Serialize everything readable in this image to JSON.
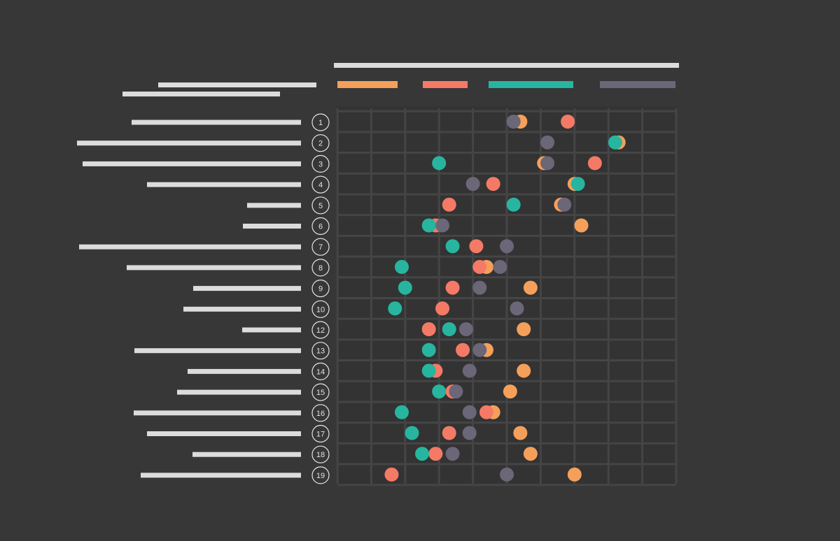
{
  "chart_data": {
    "type": "dot-plot",
    "title_placeholder": true,
    "series": [
      {
        "key": "orange",
        "color": "#f5a05a"
      },
      {
        "key": "coral",
        "color": "#f47a66"
      },
      {
        "key": "teal",
        "color": "#27b5a0"
      },
      {
        "key": "slate",
        "color": "#6b6678"
      }
    ],
    "xlim": [
      0,
      10
    ],
    "x_gridlines": 10,
    "rows": [
      {
        "rank": "1",
        "values": {
          "slate": 5.2,
          "orange": 5.4,
          "coral": 6.8
        }
      },
      {
        "rank": "2",
        "values": {
          "slate": 6.2,
          "orange": 8.3,
          "teal": 8.2
        }
      },
      {
        "rank": "3",
        "values": {
          "teal": 3.0,
          "orange": 6.1,
          "slate": 6.2,
          "coral": 7.6
        }
      },
      {
        "rank": "4",
        "values": {
          "slate": 4.0,
          "coral": 4.6,
          "orange": 7.0,
          "teal": 7.1
        }
      },
      {
        "rank": "5",
        "values": {
          "coral": 3.3,
          "teal": 5.2,
          "orange": 6.6,
          "slate": 6.7
        }
      },
      {
        "rank": "6",
        "values": {
          "teal": 2.7,
          "coral": 2.9,
          "slate": 3.1,
          "orange": 7.2
        }
      },
      {
        "rank": "7",
        "values": {
          "teal": 3.4,
          "coral": 4.1,
          "slate": 5.0
        }
      },
      {
        "rank": "8",
        "values": {
          "teal": 1.9,
          "coral": 4.2,
          "orange": 4.4,
          "slate": 4.8
        }
      },
      {
        "rank": "9",
        "values": {
          "teal": 2.0,
          "coral": 3.4,
          "slate": 4.2,
          "orange": 5.7
        }
      },
      {
        "rank": "10",
        "values": {
          "teal": 1.7,
          "coral": 3.1,
          "slate": 5.3
        }
      },
      {
        "rank": "12",
        "values": {
          "coral": 2.7,
          "teal": 3.3,
          "slate": 3.8,
          "orange": 5.5
        }
      },
      {
        "rank": "13",
        "values": {
          "teal": 2.7,
          "coral": 3.7,
          "orange": 4.4,
          "slate": 4.2
        }
      },
      {
        "rank": "14",
        "values": {
          "coral": 2.9,
          "teal": 2.7,
          "slate": 3.9,
          "orange": 5.5
        }
      },
      {
        "rank": "15",
        "values": {
          "teal": 3.0,
          "coral": 3.4,
          "slate": 3.5,
          "orange": 5.1
        }
      },
      {
        "rank": "16",
        "values": {
          "teal": 1.9,
          "slate": 3.9,
          "coral": 4.4,
          "orange": 4.6
        }
      },
      {
        "rank": "17",
        "values": {
          "teal": 2.2,
          "coral": 3.3,
          "slate": 3.9,
          "orange": 5.4
        }
      },
      {
        "rank": "18",
        "values": {
          "teal": 2.5,
          "coral": 2.9,
          "slate": 3.4,
          "orange": 5.7
        }
      },
      {
        "rank": "19",
        "values": {
          "coral": 1.6,
          "slate": 5.0,
          "orange": 7.0
        }
      }
    ]
  }
}
